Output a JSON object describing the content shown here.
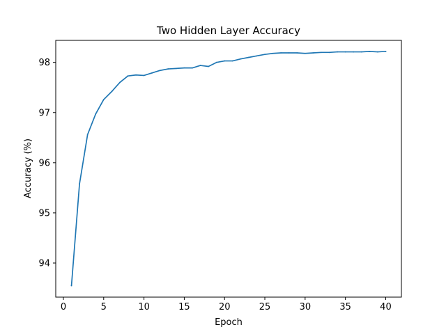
{
  "chart_data": {
    "type": "line",
    "title": "Two Hidden Layer Accuracy",
    "xlabel": "Epoch",
    "ylabel": "Accuracy (%)",
    "xlim": [
      -0.95,
      41.95
    ],
    "ylim": [
      93.32,
      98.44
    ],
    "xticks": [
      0,
      5,
      10,
      15,
      20,
      25,
      30,
      35,
      40
    ],
    "yticks": [
      94,
      95,
      96,
      97,
      98
    ],
    "grid": false,
    "legend": null,
    "series": [
      {
        "color": "#1f77b4",
        "x": [
          1,
          2,
          3,
          4,
          5,
          6,
          7,
          8,
          9,
          10,
          11,
          12,
          13,
          14,
          15,
          16,
          17,
          18,
          19,
          20,
          21,
          22,
          23,
          24,
          25,
          26,
          27,
          28,
          29,
          30,
          31,
          32,
          33,
          34,
          35,
          36,
          37,
          38,
          39,
          40
        ],
        "y": [
          93.55,
          95.58,
          96.56,
          96.97,
          97.26,
          97.42,
          97.6,
          97.73,
          97.75,
          97.74,
          97.79,
          97.84,
          97.87,
          97.88,
          97.89,
          97.89,
          97.94,
          97.92,
          98.0,
          98.03,
          98.03,
          98.07,
          98.1,
          98.13,
          98.16,
          98.18,
          98.19,
          98.19,
          98.19,
          98.18,
          98.19,
          98.2,
          98.2,
          98.21,
          98.21,
          98.21,
          98.21,
          98.22,
          98.21,
          98.22
        ]
      }
    ]
  }
}
